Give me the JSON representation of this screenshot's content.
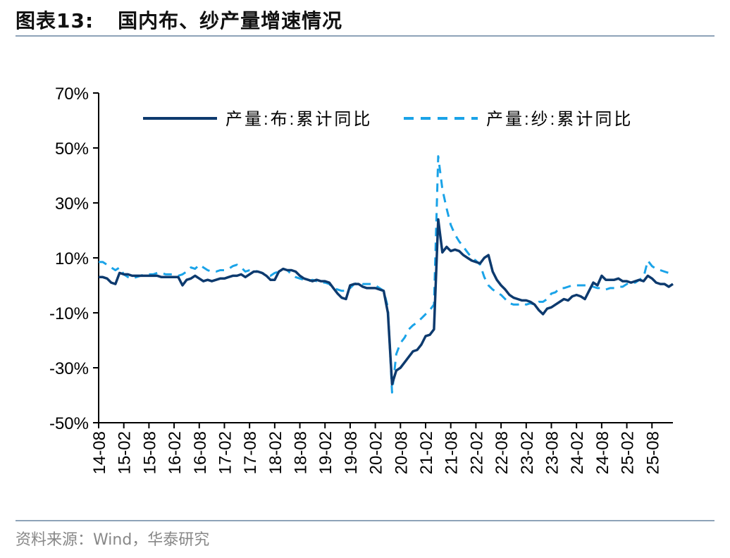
{
  "header": {
    "figure_label": "图表13:",
    "title": "国内布、纱产量增速情况"
  },
  "footer": {
    "source": "资料来源：Wind，华泰研究"
  },
  "colors": {
    "series_cloth": "#0d3a6e",
    "series_yarn": "#1aa3e8",
    "axis": "#000000",
    "rule": "#8ea3b8"
  },
  "chart_data": {
    "type": "line",
    "title": "",
    "xlabel": "",
    "ylabel": "",
    "ylim": [
      -50,
      70
    ],
    "yticks": [
      -50,
      -30,
      -10,
      10,
      30,
      50,
      70
    ],
    "ytick_labels": [
      "-50%",
      "-30%",
      "-10%",
      "10%",
      "30%",
      "50%",
      "70%"
    ],
    "xtick_labels": [
      "14-08",
      "15-02",
      "15-08",
      "16-02",
      "16-08",
      "17-02",
      "17-08",
      "18-02",
      "18-08",
      "19-02",
      "19-08",
      "20-02",
      "20-08",
      "21-02",
      "21-08",
      "22-02",
      "22-08",
      "23-02",
      "23-08",
      "24-02",
      "24-08",
      "25-02",
      "25-08"
    ],
    "x_start": "2014-08",
    "x_end": "2025-08",
    "legend_position": "top",
    "grid": false,
    "series": [
      {
        "name": "产量:布:累计同比",
        "style": "solid",
        "values": [
          3.0,
          3.0,
          2.5,
          1.0,
          0.5,
          4.5,
          4.0,
          4.0,
          3.5,
          3.5,
          3.5,
          3.5,
          3.5,
          3.5,
          3.5,
          3.0,
          3.0,
          3.0,
          3.0,
          3.0,
          0.0,
          2.0,
          2.5,
          3.5,
          2.5,
          1.5,
          2.0,
          1.5,
          2.0,
          2.5,
          2.5,
          3.0,
          3.5,
          3.5,
          4.0,
          3.0,
          4.0,
          5.0,
          5.0,
          4.5,
          3.5,
          2.0,
          2.0,
          5.0,
          6.0,
          5.5,
          5.5,
          5.0,
          3.5,
          2.5,
          2.0,
          1.5,
          2.0,
          1.5,
          1.5,
          1.0,
          -1.0,
          -3.0,
          -4.5,
          -5.0,
          0.0,
          0.5,
          0.5,
          -0.5,
          -1.0,
          -1.0,
          -1.0,
          -1.5,
          -2.0,
          -10.0,
          -36.0,
          -31.0,
          -30.0,
          -28.0,
          -26.0,
          -24.0,
          -23.5,
          -21.5,
          -18.5,
          -18.0,
          -16.0,
          24.0,
          12.0,
          14.0,
          12.5,
          13.0,
          12.5,
          11.0,
          10.0,
          9.0,
          8.5,
          8.0,
          10.0,
          11.0,
          5.0,
          2.0,
          0.0,
          -1.5,
          -3.5,
          -4.5,
          -5.0,
          -5.5,
          -5.5,
          -6.0,
          -7.0,
          -9.0,
          -10.5,
          -8.5,
          -8.0,
          -7.0,
          -6.0,
          -5.0,
          -5.5,
          -4.0,
          -3.5,
          -4.0,
          -5.0,
          -2.0,
          1.0,
          0.0,
          3.5,
          2.0,
          2.0,
          2.0,
          2.5,
          1.5,
          1.5,
          1.0,
          1.5,
          2.0,
          1.5,
          3.5,
          2.5,
          1.0,
          0.5,
          0.5,
          -0.5,
          0.5
        ]
      },
      {
        "name": "产量:纱:累计同比",
        "style": "dashed",
        "values": [
          8.5,
          8.5,
          7.5,
          6.5,
          5.5,
          6.5,
          4.0,
          3.0,
          2.5,
          3.0,
          3.5,
          4.0,
          4.0,
          4.0,
          4.5,
          4.5,
          4.0,
          4.0,
          4.0,
          3.5,
          4.0,
          5.0,
          6.5,
          6.0,
          7.5,
          6.5,
          5.5,
          5.0,
          5.0,
          5.5,
          5.5,
          6.0,
          7.0,
          7.5,
          6.5,
          5.0,
          5.5,
          5.5,
          5.0,
          4.5,
          4.0,
          3.5,
          4.5,
          5.0,
          6.0,
          5.5,
          4.0,
          3.0,
          2.5,
          2.0,
          1.5,
          2.0,
          1.5,
          1.0,
          1.0,
          0.5,
          -1.0,
          -1.5,
          -2.0,
          -2.0,
          -1.0,
          0.5,
          1.0,
          0.5,
          0.5,
          0.5,
          0.0,
          -1.0,
          -2.0,
          -8.0,
          -39.0,
          -25.0,
          -21.0,
          -19.0,
          -16.0,
          -14.5,
          -13.5,
          -12.0,
          -10.5,
          -9.0,
          -7.0,
          47.0,
          35.0,
          28.0,
          22.0,
          18.5,
          16.0,
          14.0,
          12.0,
          10.0,
          9.0,
          7.5,
          3.0,
          0.0,
          -1.5,
          -2.5,
          -3.5,
          -5.0,
          -6.5,
          -7.0,
          -7.0,
          -6.5,
          -7.0,
          -6.5,
          -7.0,
          -6.0,
          -6.0,
          -5.0,
          -3.0,
          -2.5,
          -1.0,
          -1.0,
          -0.5,
          0.0,
          0.0,
          0.0,
          0.0,
          0.0,
          -0.5,
          -1.0,
          -1.0,
          -1.5,
          -1.0,
          -1.0,
          -0.5,
          -0.5,
          0.5,
          1.0,
          1.0,
          2.0,
          3.0,
          9.0,
          7.0,
          6.0,
          5.5,
          5.0,
          4.5,
          4.5
        ]
      }
    ]
  }
}
